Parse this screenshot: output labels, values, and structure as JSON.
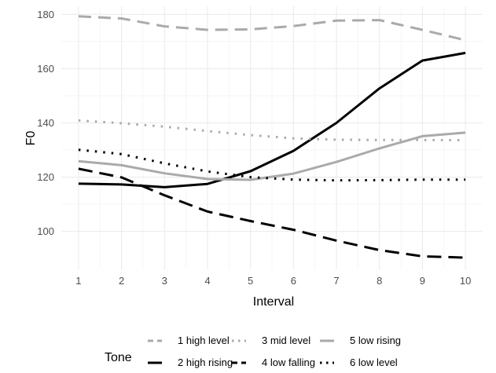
{
  "chart_data": {
    "type": "line",
    "xlabel": "Interval",
    "ylabel": "F0",
    "x": [
      1,
      2,
      3,
      4,
      5,
      6,
      7,
      8,
      9,
      10
    ],
    "xlim": [
      0.6,
      10.4
    ],
    "ylim": [
      86,
      183
    ],
    "y_ticks": [
      100,
      120,
      140,
      160,
      180
    ],
    "x_ticks": [
      1,
      2,
      3,
      4,
      5,
      6,
      7,
      8,
      9,
      10
    ],
    "grid": true,
    "legend": {
      "title": "Tone",
      "placement": "bottom",
      "columns": 3
    },
    "series": [
      {
        "name": "1 high level",
        "color": "#aaaaaa",
        "dash": "dashed",
        "values": [
          179.3,
          178.5,
          175.6,
          174.3,
          174.5,
          175.7,
          177.7,
          177.9,
          174.3,
          170.5
        ]
      },
      {
        "name": "2 high rising",
        "color": "#000000",
        "dash": "solid",
        "values": [
          117.6,
          117.3,
          116.3,
          117.5,
          122.2,
          129.7,
          140.0,
          152.7,
          163.0,
          165.8
        ]
      },
      {
        "name": "3 mid level",
        "color": "#aaaaaa",
        "dash": "dotted",
        "values": [
          140.9,
          139.9,
          138.6,
          137.0,
          135.5,
          134.3,
          133.8,
          133.7,
          133.7,
          133.6
        ]
      },
      {
        "name": "4 low falling",
        "color": "#000000",
        "dash": "longdash",
        "values": [
          123.1,
          119.9,
          113.3,
          107.3,
          103.8,
          100.6,
          96.6,
          93.1,
          90.8,
          90.3
        ]
      },
      {
        "name": "5 low rising",
        "color": "#aaaaaa",
        "dash": "solid",
        "values": [
          125.9,
          124.4,
          121.4,
          119.3,
          119.0,
          121.3,
          125.6,
          130.6,
          135.1,
          136.4
        ]
      },
      {
        "name": "6 low level",
        "color": "#000000",
        "dash": "dotted",
        "values": [
          130.1,
          128.5,
          125.1,
          122.1,
          120.0,
          119.1,
          118.8,
          118.9,
          119.1,
          119.1
        ]
      }
    ]
  }
}
